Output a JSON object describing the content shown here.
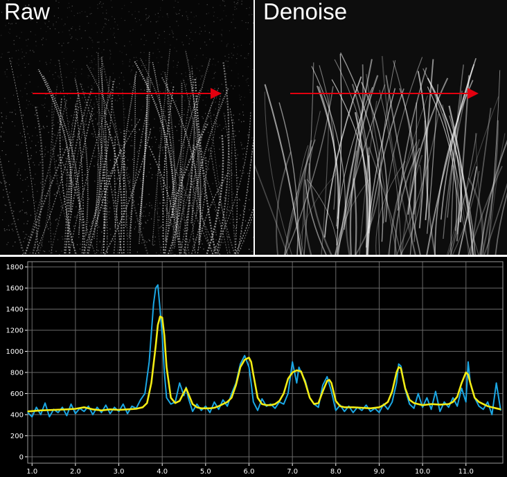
{
  "panels": {
    "raw": {
      "title": "Raw"
    },
    "denoise": {
      "title": "Denoise"
    }
  },
  "colors": {
    "arrow": "#e3000f",
    "raw_series": "#1ba7e4",
    "denoised_series": "#f2ec15",
    "grid": "#6a6a6a",
    "background": "#000000"
  },
  "chart_data": {
    "type": "line",
    "title": "",
    "xlabel": "",
    "ylabel": "",
    "xlim": [
      0.9,
      11.85
    ],
    "ylim": [
      -60,
      1850
    ],
    "xticks": [
      1.0,
      2.0,
      3.0,
      4.0,
      5.0,
      6.0,
      7.0,
      8.0,
      9.0,
      10.0,
      11.0
    ],
    "xtick_labels": [
      "1.0",
      "2.0",
      "3.0",
      "4.0",
      "5.0",
      "6.0",
      "7.0",
      "8.0",
      "9.0",
      "10.0",
      "11.0"
    ],
    "yticks": [
      0,
      200,
      400,
      600,
      800,
      1000,
      1200,
      1400,
      1600,
      1800
    ],
    "ytick_labels": [
      "0",
      "200",
      "400",
      "600",
      "800",
      "1000",
      "1200",
      "1400",
      "1600",
      "1800"
    ],
    "grid": true,
    "legend": "none",
    "series": [
      {
        "x": [
          0.9,
          1.0,
          1.1,
          1.2,
          1.3,
          1.4,
          1.5,
          1.6,
          1.7,
          1.8,
          1.9,
          2.0,
          2.1,
          2.2,
          2.3,
          2.4,
          2.5,
          2.6,
          2.7,
          2.8,
          2.9,
          3.0,
          3.1,
          3.2,
          3.3,
          3.4,
          3.5,
          3.6,
          3.7,
          3.8,
          3.85,
          3.9,
          3.95,
          4.0,
          4.05,
          4.1,
          4.2,
          4.3,
          4.4,
          4.5,
          4.55,
          4.6,
          4.7,
          4.8,
          4.9,
          5.0,
          5.1,
          5.2,
          5.3,
          5.4,
          5.5,
          5.6,
          5.7,
          5.8,
          5.9,
          6.0,
          6.05,
          6.1,
          6.2,
          6.3,
          6.4,
          6.5,
          6.6,
          6.7,
          6.8,
          6.9,
          7.0,
          7.1,
          7.15,
          7.2,
          7.3,
          7.4,
          7.5,
          7.6,
          7.7,
          7.8,
          7.9,
          8.0,
          8.1,
          8.2,
          8.3,
          8.4,
          8.5,
          8.6,
          8.7,
          8.8,
          8.9,
          9.0,
          9.1,
          9.2,
          9.3,
          9.4,
          9.45,
          9.5,
          9.6,
          9.7,
          9.8,
          9.9,
          10.0,
          10.1,
          10.2,
          10.3,
          10.4,
          10.5,
          10.6,
          10.7,
          10.8,
          10.9,
          11.0,
          11.05,
          11.1,
          11.2,
          11.3,
          11.4,
          11.5,
          11.6,
          11.7,
          11.8
        ],
        "values": [
          420,
          380,
          470,
          400,
          510,
          380,
          450,
          420,
          470,
          390,
          500,
          410,
          460,
          430,
          480,
          400,
          470,
          420,
          490,
          410,
          470,
          430,
          500,
          410,
          480,
          460,
          540,
          600,
          900,
          1450,
          1600,
          1630,
          1400,
          1150,
          800,
          560,
          500,
          520,
          700,
          580,
          660,
          560,
          430,
          500,
          440,
          480,
          420,
          520,
          450,
          540,
          480,
          600,
          700,
          880,
          960,
          850,
          700,
          520,
          440,
          550,
          480,
          500,
          460,
          520,
          500,
          600,
          900,
          700,
          850,
          800,
          720,
          560,
          500,
          470,
          680,
          760,
          620,
          440,
          490,
          430,
          480,
          420,
          470,
          440,
          490,
          430,
          460,
          420,
          500,
          450,
          520,
          700,
          880,
          860,
          640,
          500,
          460,
          600,
          470,
          560,
          450,
          620,
          430,
          520,
          470,
          560,
          480,
          650,
          520,
          900,
          700,
          560,
          480,
          450,
          520,
          400,
          700,
          440
        ],
        "color": "#1ba7e4"
      },
      {
        "x": [
          0.9,
          1.2,
          1.5,
          1.8,
          2.0,
          2.2,
          2.4,
          2.6,
          2.8,
          3.0,
          3.2,
          3.4,
          3.55,
          3.65,
          3.75,
          3.85,
          3.9,
          3.95,
          4.0,
          4.05,
          4.1,
          4.2,
          4.3,
          4.4,
          4.5,
          4.55,
          4.6,
          4.7,
          4.8,
          4.9,
          5.0,
          5.1,
          5.2,
          5.3,
          5.4,
          5.5,
          5.6,
          5.7,
          5.8,
          5.9,
          6.0,
          6.05,
          6.1,
          6.2,
          6.3,
          6.4,
          6.5,
          6.6,
          6.7,
          6.8,
          6.9,
          7.0,
          7.1,
          7.2,
          7.3,
          7.4,
          7.5,
          7.6,
          7.7,
          7.8,
          7.85,
          7.9,
          8.0,
          8.1,
          8.2,
          8.4,
          8.6,
          8.8,
          9.0,
          9.1,
          9.2,
          9.3,
          9.4,
          9.45,
          9.5,
          9.6,
          9.7,
          9.8,
          9.9,
          10.0,
          10.2,
          10.4,
          10.6,
          10.7,
          10.8,
          10.9,
          11.0,
          11.05,
          11.1,
          11.2,
          11.3,
          11.4,
          11.5,
          11.6,
          11.7,
          11.8
        ],
        "values": [
          430,
          440,
          445,
          450,
          455,
          470,
          450,
          440,
          450,
          445,
          450,
          455,
          470,
          510,
          700,
          1050,
          1250,
          1330,
          1320,
          1150,
          850,
          560,
          510,
          530,
          610,
          650,
          600,
          500,
          470,
          460,
          460,
          460,
          465,
          480,
          500,
          520,
          560,
          680,
          850,
          920,
          940,
          900,
          780,
          560,
          500,
          490,
          490,
          500,
          530,
          600,
          740,
          800,
          820,
          810,
          700,
          560,
          500,
          510,
          620,
          720,
          730,
          700,
          530,
          480,
          470,
          470,
          465,
          460,
          470,
          490,
          520,
          620,
          800,
          850,
          840,
          650,
          540,
          510,
          500,
          490,
          500,
          495,
          500,
          520,
          570,
          700,
          800,
          780,
          700,
          560,
          520,
          500,
          480,
          470,
          460,
          450
        ],
        "color": "#f2ec15"
      }
    ]
  }
}
